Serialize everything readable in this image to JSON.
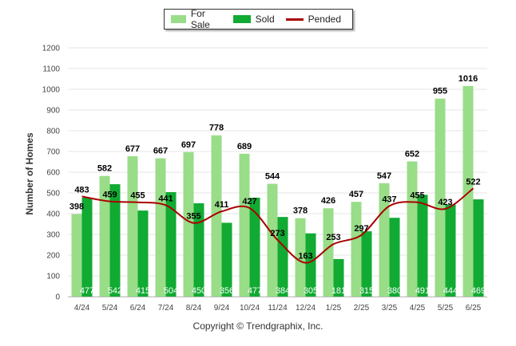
{
  "chart_data": {
    "type": "bar",
    "categories": [
      "4/24",
      "5/24",
      "6/24",
      "7/24",
      "8/24",
      "9/24",
      "10/24",
      "11/24",
      "12/24",
      "1/25",
      "2/25",
      "3/25",
      "4/25",
      "5/25",
      "6/25"
    ],
    "series": [
      {
        "name": "For Sale",
        "kind": "bar",
        "color": "#99dd88",
        "values": [
          398,
          582,
          677,
          667,
          697,
          778,
          689,
          544,
          378,
          426,
          457,
          547,
          652,
          955,
          1016
        ]
      },
      {
        "name": "Sold",
        "kind": "bar",
        "color": "#11aa33",
        "values": [
          477,
          542,
          415,
          504,
          450,
          356,
          477,
          384,
          305,
          181,
          315,
          380,
          491,
          444,
          469
        ]
      },
      {
        "name": "Pended",
        "kind": "line",
        "color": "#aa0000",
        "values": [
          483,
          459,
          455,
          441,
          355,
          411,
          427,
          273,
          163,
          253,
          297,
          437,
          455,
          423,
          522
        ]
      }
    ],
    "ylabel": "Number of Homes",
    "xlabel": "",
    "ylim": [
      0,
      1200
    ],
    "yticks": [
      0,
      100,
      200,
      300,
      400,
      500,
      600,
      700,
      800,
      900,
      1000,
      1100,
      1200
    ],
    "grid": true,
    "legend_position": "top-center"
  },
  "footer": {
    "copyright": "Copyright © Trendgraphix, Inc."
  }
}
